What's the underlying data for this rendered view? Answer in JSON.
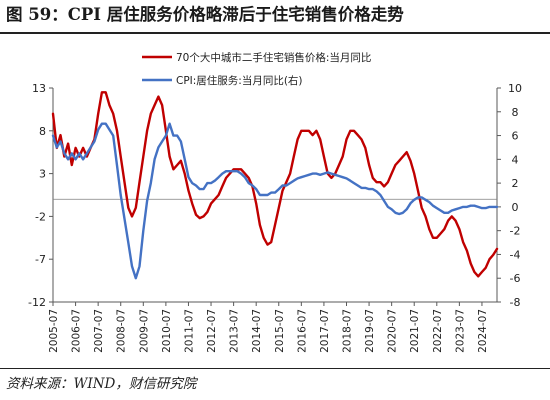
{
  "figure": {
    "title": "图 59：CPI 居住服务价格略滞后于住宅销售价格走势",
    "source": "资料来源：WIND，财信研究院"
  },
  "colors": {
    "red": "#c00000",
    "blue": "#4472c4",
    "axis": "#595959"
  },
  "chart_data": {
    "type": "line",
    "title": "",
    "legend": {
      "position": "top",
      "entries": [
        "70个大中城市二手住宅销售价格:当月同比",
        "CPI:居住服务:当月同比(右)"
      ]
    },
    "left_axis": {
      "min": -12,
      "max": 13,
      "ticks": [
        13,
        8,
        3,
        -2,
        -7,
        -12
      ]
    },
    "right_axis": {
      "min": -8,
      "max": 10,
      "ticks": [
        10,
        8,
        6,
        4,
        2,
        0,
        -2,
        -4,
        -6,
        -8
      ]
    },
    "x_axis": {
      "start": "2005-07",
      "end": "2025-03",
      "tick_labels": [
        "2005-07",
        "2006-07",
        "2007-07",
        "2008-07",
        "2009-07",
        "2010-07",
        "2011-07",
        "2012-07",
        "2013-07",
        "2014-07",
        "2015-07",
        "2016-07",
        "2017-07",
        "2018-07",
        "2019-07",
        "2020-07",
        "2021-07",
        "2022-07",
        "2023-07",
        "2024-07"
      ]
    },
    "series": [
      {
        "name": "70个大中城市二手住宅销售价格:当月同比",
        "axis": "left",
        "color": "#c00000",
        "points": [
          [
            "2005-07",
            10
          ],
          [
            "2005-09",
            6
          ],
          [
            "2005-11",
            7.5
          ],
          [
            "2006-01",
            5
          ],
          [
            "2006-03",
            6.5
          ],
          [
            "2006-05",
            4
          ],
          [
            "2006-07",
            6
          ],
          [
            "2006-09",
            5
          ],
          [
            "2006-11",
            6
          ],
          [
            "2007-01",
            5
          ],
          [
            "2007-03",
            6
          ],
          [
            "2007-05",
            7
          ],
          [
            "2007-07",
            10
          ],
          [
            "2007-09",
            12.5
          ],
          [
            "2007-11",
            12.5
          ],
          [
            "2008-01",
            11
          ],
          [
            "2008-03",
            10
          ],
          [
            "2008-05",
            8
          ],
          [
            "2008-07",
            5
          ],
          [
            "2008-09",
            2
          ],
          [
            "2008-11",
            -1
          ],
          [
            "2009-01",
            -2
          ],
          [
            "2009-03",
            -1
          ],
          [
            "2009-05",
            2
          ],
          [
            "2009-07",
            5
          ],
          [
            "2009-09",
            8
          ],
          [
            "2009-11",
            10
          ],
          [
            "2010-01",
            11
          ],
          [
            "2010-03",
            12
          ],
          [
            "2010-05",
            11
          ],
          [
            "2010-07",
            8
          ],
          [
            "2010-09",
            5
          ],
          [
            "2010-11",
            3.5
          ],
          [
            "2011-01",
            4
          ],
          [
            "2011-03",
            4.5
          ],
          [
            "2011-05",
            3
          ],
          [
            "2011-07",
            1
          ],
          [
            "2011-09",
            -0.5
          ],
          [
            "2011-11",
            -1.8
          ],
          [
            "2012-01",
            -2.2
          ],
          [
            "2012-03",
            -2
          ],
          [
            "2012-05",
            -1.5
          ],
          [
            "2012-07",
            -0.5
          ],
          [
            "2012-09",
            0
          ],
          [
            "2012-11",
            0.5
          ],
          [
            "2013-01",
            1.5
          ],
          [
            "2013-03",
            2.5
          ],
          [
            "2013-05",
            3
          ],
          [
            "2013-07",
            3.5
          ],
          [
            "2013-09",
            3.5
          ],
          [
            "2013-11",
            3.5
          ],
          [
            "2014-01",
            3
          ],
          [
            "2014-03",
            2.5
          ],
          [
            "2014-05",
            1.5
          ],
          [
            "2014-07",
            -0.5
          ],
          [
            "2014-09",
            -3
          ],
          [
            "2014-11",
            -4.5
          ],
          [
            "2015-01",
            -5.3
          ],
          [
            "2015-03",
            -5
          ],
          [
            "2015-05",
            -3
          ],
          [
            "2015-07",
            -1
          ],
          [
            "2015-09",
            1
          ],
          [
            "2015-11",
            2
          ],
          [
            "2016-01",
            3
          ],
          [
            "2016-03",
            5
          ],
          [
            "2016-05",
            7
          ],
          [
            "2016-07",
            8
          ],
          [
            "2016-09",
            8
          ],
          [
            "2016-11",
            8
          ],
          [
            "2017-01",
            7.5
          ],
          [
            "2017-03",
            8
          ],
          [
            "2017-05",
            7
          ],
          [
            "2017-07",
            5
          ],
          [
            "2017-09",
            3
          ],
          [
            "2017-11",
            2.5
          ],
          [
            "2018-01",
            3
          ],
          [
            "2018-03",
            4
          ],
          [
            "2018-05",
            5
          ],
          [
            "2018-07",
            7
          ],
          [
            "2018-09",
            8
          ],
          [
            "2018-11",
            8
          ],
          [
            "2019-01",
            7.5
          ],
          [
            "2019-03",
            7
          ],
          [
            "2019-05",
            6
          ],
          [
            "2019-07",
            4
          ],
          [
            "2019-09",
            2.5
          ],
          [
            "2019-11",
            2
          ],
          [
            "2020-01",
            2
          ],
          [
            "2020-03",
            1.5
          ],
          [
            "2020-05",
            2
          ],
          [
            "2020-07",
            3
          ],
          [
            "2020-09",
            4
          ],
          [
            "2020-11",
            4.5
          ],
          [
            "2021-01",
            5
          ],
          [
            "2021-03",
            5.5
          ],
          [
            "2021-05",
            4.5
          ],
          [
            "2021-07",
            3
          ],
          [
            "2021-09",
            1
          ],
          [
            "2021-11",
            -1
          ],
          [
            "2022-01",
            -2
          ],
          [
            "2022-03",
            -3.5
          ],
          [
            "2022-05",
            -4.5
          ],
          [
            "2022-07",
            -4.5
          ],
          [
            "2022-09",
            -4
          ],
          [
            "2022-11",
            -3.5
          ],
          [
            "2023-01",
            -2.5
          ],
          [
            "2023-03",
            -2
          ],
          [
            "2023-05",
            -2.5
          ],
          [
            "2023-07",
            -3.5
          ],
          [
            "2023-09",
            -5
          ],
          [
            "2023-11",
            -6
          ],
          [
            "2024-01",
            -7.5
          ],
          [
            "2024-03",
            -8.5
          ],
          [
            "2024-05",
            -9
          ],
          [
            "2024-07",
            -8.5
          ],
          [
            "2024-09",
            -8
          ],
          [
            "2024-11",
            -7
          ],
          [
            "2025-01",
            -6.5
          ],
          [
            "2025-03",
            -5.8
          ]
        ]
      },
      {
        "name": "CPI:居住服务:当月同比(右)",
        "axis": "right",
        "color": "#4472c4",
        "points": [
          [
            "2005-07",
            6
          ],
          [
            "2005-09",
            5
          ],
          [
            "2005-11",
            5.5
          ],
          [
            "2006-01",
            4.5
          ],
          [
            "2006-03",
            4
          ],
          [
            "2006-05",
            4.5
          ],
          [
            "2006-07",
            4
          ],
          [
            "2006-09",
            4.5
          ],
          [
            "2006-11",
            4
          ],
          [
            "2007-01",
            4.5
          ],
          [
            "2007-03",
            5
          ],
          [
            "2007-05",
            5.5
          ],
          [
            "2007-07",
            6.5
          ],
          [
            "2007-09",
            7
          ],
          [
            "2007-11",
            7
          ],
          [
            "2008-01",
            6.5
          ],
          [
            "2008-03",
            6
          ],
          [
            "2008-05",
            3.5
          ],
          [
            "2008-07",
            1
          ],
          [
            "2008-09",
            -1
          ],
          [
            "2008-11",
            -3
          ],
          [
            "2009-01",
            -5
          ],
          [
            "2009-03",
            -6
          ],
          [
            "2009-05",
            -5
          ],
          [
            "2009-07",
            -2
          ],
          [
            "2009-09",
            0.5
          ],
          [
            "2009-11",
            2
          ],
          [
            "2010-01",
            4
          ],
          [
            "2010-03",
            5
          ],
          [
            "2010-05",
            5.5
          ],
          [
            "2010-07",
            6
          ],
          [
            "2010-09",
            7
          ],
          [
            "2010-11",
            6
          ],
          [
            "2011-01",
            6
          ],
          [
            "2011-03",
            5.5
          ],
          [
            "2011-05",
            4
          ],
          [
            "2011-07",
            2.5
          ],
          [
            "2011-09",
            2
          ],
          [
            "2011-11",
            1.8
          ],
          [
            "2012-01",
            1.5
          ],
          [
            "2012-03",
            1.5
          ],
          [
            "2012-05",
            2
          ],
          [
            "2012-07",
            2
          ],
          [
            "2012-09",
            2.2
          ],
          [
            "2012-11",
            2.5
          ],
          [
            "2013-01",
            2.8
          ],
          [
            "2013-03",
            3
          ],
          [
            "2013-05",
            3
          ],
          [
            "2013-07",
            3
          ],
          [
            "2013-09",
            3
          ],
          [
            "2013-11",
            2.8
          ],
          [
            "2014-01",
            2.5
          ],
          [
            "2014-03",
            2
          ],
          [
            "2014-05",
            1.8
          ],
          [
            "2014-07",
            1.5
          ],
          [
            "2014-09",
            1
          ],
          [
            "2014-11",
            1
          ],
          [
            "2015-01",
            1
          ],
          [
            "2015-03",
            1.2
          ],
          [
            "2015-05",
            1.2
          ],
          [
            "2015-07",
            1.5
          ],
          [
            "2015-09",
            1.8
          ],
          [
            "2015-11",
            1.8
          ],
          [
            "2016-01",
            2
          ],
          [
            "2016-03",
            2.2
          ],
          [
            "2016-05",
            2.4
          ],
          [
            "2016-07",
            2.5
          ],
          [
            "2016-09",
            2.6
          ],
          [
            "2016-11",
            2.7
          ],
          [
            "2017-01",
            2.8
          ],
          [
            "2017-03",
            2.8
          ],
          [
            "2017-05",
            2.7
          ],
          [
            "2017-07",
            2.8
          ],
          [
            "2017-09",
            2.9
          ],
          [
            "2017-11",
            2.8
          ],
          [
            "2018-01",
            2.7
          ],
          [
            "2018-03",
            2.6
          ],
          [
            "2018-05",
            2.5
          ],
          [
            "2018-07",
            2.4
          ],
          [
            "2018-09",
            2.2
          ],
          [
            "2018-11",
            2
          ],
          [
            "2019-01",
            1.8
          ],
          [
            "2019-03",
            1.6
          ],
          [
            "2019-05",
            1.6
          ],
          [
            "2019-07",
            1.5
          ],
          [
            "2019-09",
            1.5
          ],
          [
            "2019-11",
            1.3
          ],
          [
            "2020-01",
            1
          ],
          [
            "2020-03",
            0.5
          ],
          [
            "2020-05",
            0
          ],
          [
            "2020-07",
            -0.2
          ],
          [
            "2020-09",
            -0.5
          ],
          [
            "2020-11",
            -0.6
          ],
          [
            "2021-01",
            -0.5
          ],
          [
            "2021-03",
            -0.2
          ],
          [
            "2021-05",
            0.3
          ],
          [
            "2021-07",
            0.6
          ],
          [
            "2021-09",
            0.8
          ],
          [
            "2021-11",
            0.8
          ],
          [
            "2022-01",
            0.6
          ],
          [
            "2022-03",
            0.4
          ],
          [
            "2022-05",
            0.1
          ],
          [
            "2022-07",
            -0.1
          ],
          [
            "2022-09",
            -0.3
          ],
          [
            "2022-11",
            -0.5
          ],
          [
            "2023-01",
            -0.5
          ],
          [
            "2023-03",
            -0.3
          ],
          [
            "2023-05",
            -0.2
          ],
          [
            "2023-07",
            -0.1
          ],
          [
            "2023-09",
            0
          ],
          [
            "2023-11",
            0
          ],
          [
            "2024-01",
            0.1
          ],
          [
            "2024-03",
            0.1
          ],
          [
            "2024-05",
            0
          ],
          [
            "2024-07",
            -0.1
          ],
          [
            "2024-09",
            -0.1
          ],
          [
            "2024-11",
            0
          ],
          [
            "2025-01",
            0
          ],
          [
            "2025-03",
            0
          ]
        ]
      }
    ]
  }
}
